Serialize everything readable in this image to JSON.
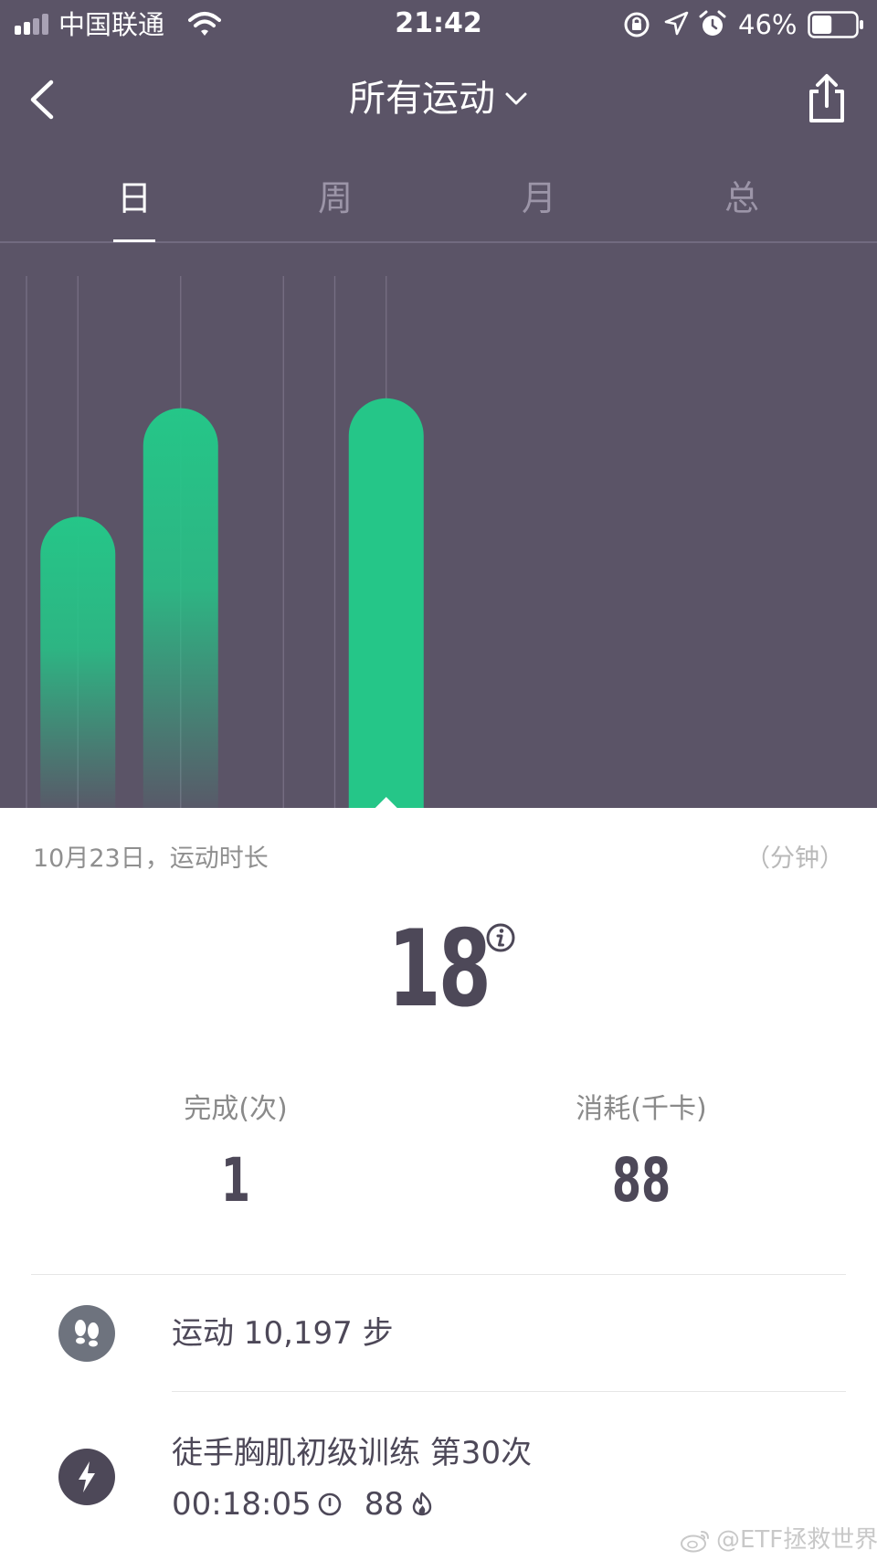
{
  "status_bar": {
    "carrier": "中国联通",
    "time": "21:42",
    "battery_percent": "46%",
    "battery_level": 0.46
  },
  "header": {
    "title": "所有运动"
  },
  "tabs": [
    {
      "label": "日",
      "active": true
    },
    {
      "label": "周",
      "active": false
    },
    {
      "label": "月",
      "active": false
    },
    {
      "label": "总",
      "active": false
    }
  ],
  "chart_data": {
    "type": "bar",
    "bars": [
      {
        "value": 0.59,
        "selected": false
      },
      {
        "value": 0.81,
        "selected": false
      },
      {
        "value": 0.0,
        "selected": false
      },
      {
        "value": 0.83,
        "selected": true
      }
    ],
    "colors": {
      "bar": "#25c688",
      "background": "#5b5467",
      "gridline": "#776f84"
    }
  },
  "summary": {
    "date_label": "10月23日，运动时长",
    "unit_label": "（分钟）",
    "duration_value": "18",
    "completed_label": "完成(次)",
    "completed_value": "1",
    "calories_label": "消耗(千卡)",
    "calories_value": "88"
  },
  "activities": {
    "steps_text": "运动 10,197 步",
    "workout_title": "徒手胸肌初级训练  第30次",
    "workout_time": "00:18:05",
    "workout_calories": "88"
  },
  "watermark": "@ETF拯救世界",
  "icons": [
    "signal-icon",
    "wifi-icon",
    "orientation-lock-icon",
    "location-icon",
    "alarm-icon",
    "battery-icon",
    "back-icon",
    "chevron-down-icon",
    "share-icon",
    "info-icon",
    "footprints-icon",
    "lightning-icon",
    "timer-icon",
    "flame-icon",
    "weibo-icon"
  ]
}
